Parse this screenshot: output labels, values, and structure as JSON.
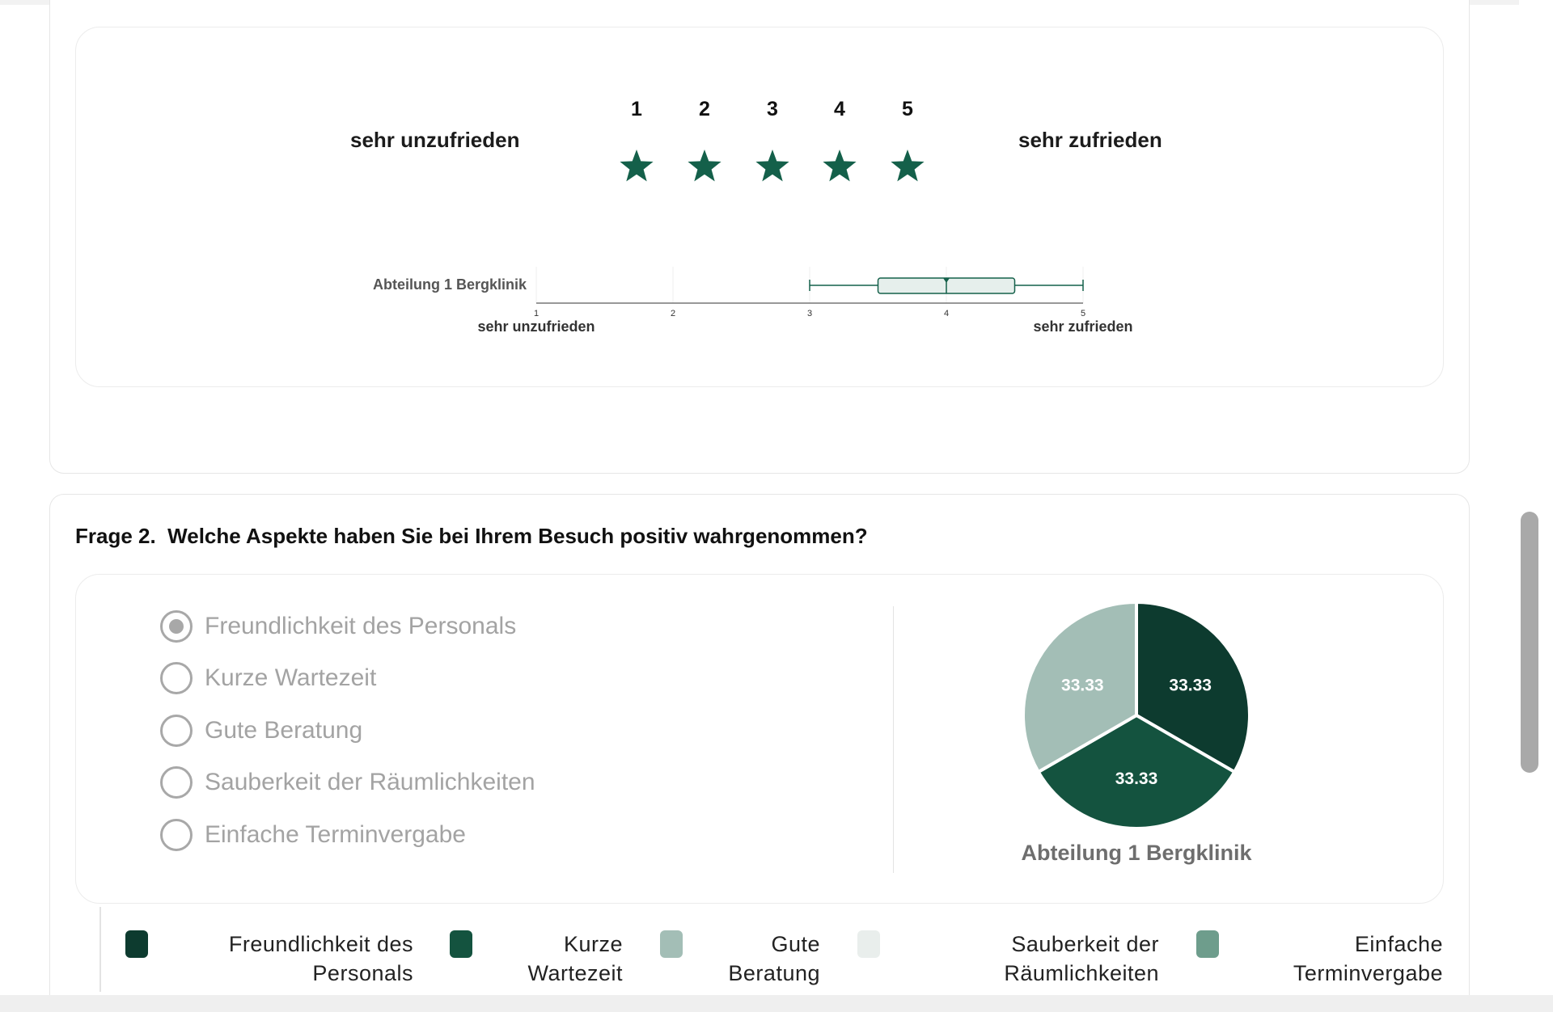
{
  "rating": {
    "left_label": "sehr unzufrieden",
    "right_label": "sehr zufrieden",
    "scale": [
      "1",
      "2",
      "3",
      "4",
      "5"
    ],
    "star_color": "#14604a",
    "star_icon": "star-icon"
  },
  "boxplot": {
    "row_label": "Abteilung 1 Bergklinik",
    "axis_min_label": "sehr unzufrieden",
    "axis_max_label": "sehr zufrieden",
    "ticks": [
      "1",
      "2",
      "3",
      "4",
      "5"
    ],
    "min": 3,
    "q1": 3.5,
    "median": 4,
    "q3": 4.5,
    "max": 5,
    "color": "#14604a",
    "box_fill": "#e6efec"
  },
  "question2": {
    "number": "Frage 2.",
    "text": "Welche Aspekte haben Sie bei Ihrem Besuch positiv wahrgenommen?",
    "options": [
      {
        "label": "Freundlichkeit des Personals",
        "checked": true
      },
      {
        "label": "Kurze Wartezeit",
        "checked": false
      },
      {
        "label": "Gute Beratung",
        "checked": false
      },
      {
        "label": "Sauberkeit der Räumlichkeiten",
        "checked": false
      },
      {
        "label": "Einfache Terminvergabe",
        "checked": false
      }
    ]
  },
  "chart_data": {
    "type": "pie",
    "title": "Abteilung 1 Bergklinik",
    "slices": [
      {
        "name": "Freundlichkeit des Personals",
        "value": 33.33,
        "label": "33.33",
        "color": "#0d3b2f"
      },
      {
        "name": "Kurze Wartezeit",
        "value": 33.33,
        "label": "33.33",
        "color": "#14533f"
      },
      {
        "name": "Gute Beratung",
        "value": 33.33,
        "label": "33.33",
        "color": "#a3beb6"
      }
    ],
    "legend": [
      {
        "line1": "Freundlichkeit des",
        "line2": "Personals",
        "color": "#0d3b2f"
      },
      {
        "line1": "Kurze",
        "line2": "Wartezeit",
        "color": "#14533f"
      },
      {
        "line1": "Gute",
        "line2": "Beratung",
        "color": "#a3beb6"
      },
      {
        "line1": "Sauberkeit der",
        "line2": "Räumlichkeiten",
        "color": "#e9eeec"
      },
      {
        "line1": "Einfache",
        "line2": "Terminvergabe",
        "color": "#6e9d8c"
      }
    ],
    "legend_position": "bottom"
  }
}
